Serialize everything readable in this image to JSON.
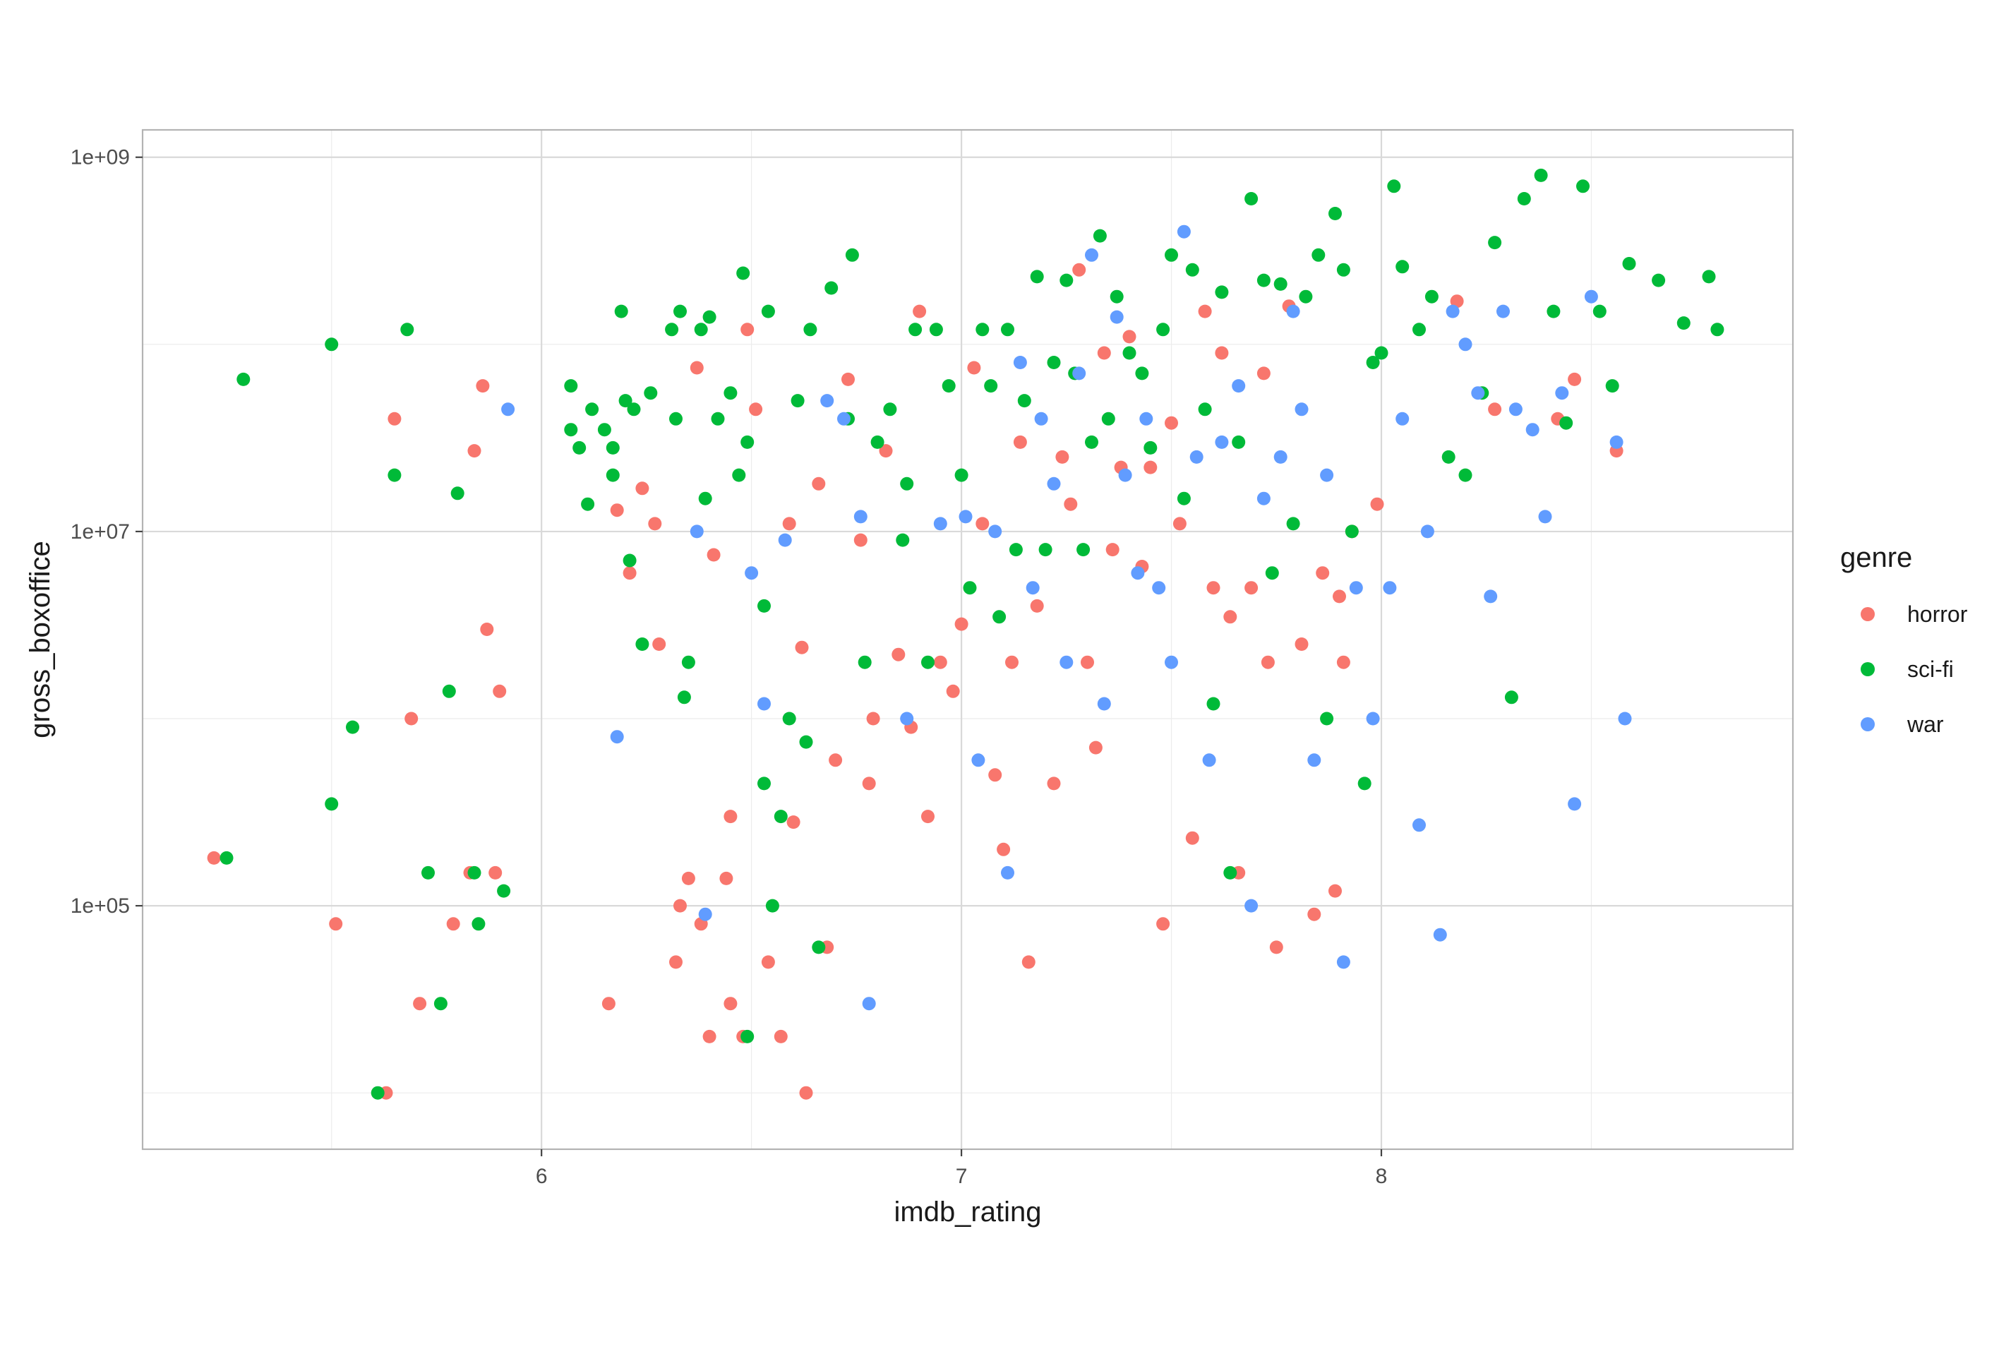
{
  "chart_data": {
    "type": "scatter",
    "title": "",
    "xlabel": "imdb_rating",
    "ylabel": "gross_boxoffice",
    "x_scale": "linear",
    "y_scale": "log10",
    "xlim": [
      5.05,
      8.98
    ],
    "ylim": [
      5000,
      1400000000
    ],
    "x_ticks": [
      6,
      7,
      8
    ],
    "x_tick_labels": [
      "6",
      "7",
      "8"
    ],
    "y_ticks": [
      100000,
      10000000,
      1000000000
    ],
    "y_tick_labels": [
      "1e+05",
      "1e+07",
      "1e+09"
    ],
    "y_minor_ticks": [
      10000,
      1000000,
      100000000
    ],
    "grid": true,
    "legend": {
      "title": "genre",
      "position": "right"
    },
    "series": [
      {
        "name": "horror",
        "color": "#F8766D",
        "points": [
          [
            5.22,
            180000
          ],
          [
            5.51,
            80000
          ],
          [
            5.63,
            10000
          ],
          [
            5.65,
            40000000
          ],
          [
            5.69,
            1000000
          ],
          [
            5.71,
            30000
          ],
          [
            5.79,
            80000
          ],
          [
            5.83,
            150000
          ],
          [
            5.84,
            27000000
          ],
          [
            5.86,
            60000000
          ],
          [
            5.87,
            3000000
          ],
          [
            5.89,
            150000
          ],
          [
            5.9,
            1400000
          ],
          [
            6.16,
            30000
          ],
          [
            6.18,
            13000000
          ],
          [
            6.21,
            6000000
          ],
          [
            6.24,
            17000000
          ],
          [
            6.27,
            11000000
          ],
          [
            6.28,
            2500000
          ],
          [
            6.32,
            50000
          ],
          [
            6.33,
            100000
          ],
          [
            6.35,
            140000
          ],
          [
            6.37,
            75000000
          ],
          [
            6.38,
            80000
          ],
          [
            6.4,
            20000
          ],
          [
            6.41,
            7500000
          ],
          [
            6.44,
            140000
          ],
          [
            6.45,
            30000
          ],
          [
            6.45,
            300000
          ],
          [
            6.48,
            20000
          ],
          [
            6.49,
            120000000
          ],
          [
            6.51,
            45000000
          ],
          [
            6.54,
            50000
          ],
          [
            6.57,
            20000
          ],
          [
            6.59,
            11000000
          ],
          [
            6.6,
            280000
          ],
          [
            6.62,
            2400000
          ],
          [
            6.63,
            10000
          ],
          [
            6.66,
            18000000
          ],
          [
            6.68,
            60000
          ],
          [
            6.7,
            600000
          ],
          [
            6.73,
            65000000
          ],
          [
            6.76,
            9000000
          ],
          [
            6.78,
            450000
          ],
          [
            6.79,
            1000000
          ],
          [
            6.82,
            27000000
          ],
          [
            6.85,
            2200000
          ],
          [
            6.88,
            900000
          ],
          [
            6.9,
            150000000
          ],
          [
            6.92,
            300000
          ],
          [
            6.95,
            2000000
          ],
          [
            6.98,
            1400000
          ],
          [
            7.0,
            3200000
          ],
          [
            7.03,
            75000000
          ],
          [
            7.05,
            11000000
          ],
          [
            7.08,
            500000
          ],
          [
            7.1,
            200000
          ],
          [
            7.12,
            2000000
          ],
          [
            7.14,
            30000000
          ],
          [
            7.16,
            50000
          ],
          [
            7.18,
            4000000
          ],
          [
            7.22,
            450000
          ],
          [
            7.24,
            25000000
          ],
          [
            7.26,
            14000000
          ],
          [
            7.28,
            250000000
          ],
          [
            7.3,
            2000000
          ],
          [
            7.32,
            700000
          ],
          [
            7.34,
            90000000
          ],
          [
            7.36,
            8000000
          ],
          [
            7.38,
            22000000
          ],
          [
            7.4,
            110000000
          ],
          [
            7.43,
            6500000
          ],
          [
            7.45,
            22000000
          ],
          [
            7.48,
            80000
          ],
          [
            7.5,
            38000000
          ],
          [
            7.52,
            11000000
          ],
          [
            7.55,
            230000
          ],
          [
            7.58,
            150000000
          ],
          [
            7.6,
            5000000
          ],
          [
            7.62,
            90000000
          ],
          [
            7.64,
            3500000
          ],
          [
            7.66,
            150000
          ],
          [
            7.69,
            5000000
          ],
          [
            7.72,
            70000000
          ],
          [
            7.73,
            2000000
          ],
          [
            7.75,
            60000
          ],
          [
            7.78,
            160000000
          ],
          [
            7.81,
            2500000
          ],
          [
            7.84,
            90000
          ],
          [
            7.86,
            6000000
          ],
          [
            7.89,
            120000
          ],
          [
            7.9,
            4500000
          ],
          [
            7.91,
            2000000
          ],
          [
            7.93,
            10000000
          ],
          [
            7.99,
            14000000
          ],
          [
            8.18,
            170000000
          ],
          [
            8.27,
            45000000
          ],
          [
            8.42,
            40000000
          ],
          [
            8.46,
            65000000
          ],
          [
            8.56,
            27000000
          ]
        ]
      },
      {
        "name": "sci-fi",
        "color": "#00BA38",
        "points": [
          [
            5.25,
            180000
          ],
          [
            5.29,
            65000000
          ],
          [
            5.5,
            100000000
          ],
          [
            5.5,
            350000
          ],
          [
            5.55,
            900000
          ],
          [
            5.61,
            10000
          ],
          [
            5.65,
            20000000
          ],
          [
            5.68,
            120000000
          ],
          [
            5.73,
            150000
          ],
          [
            5.76,
            30000
          ],
          [
            5.78,
            1400000
          ],
          [
            5.8,
            16000000
          ],
          [
            5.84,
            150000
          ],
          [
            5.85,
            80000
          ],
          [
            5.91,
            120000
          ],
          [
            6.07,
            60000000
          ],
          [
            6.07,
            35000000
          ],
          [
            6.09,
            28000000
          ],
          [
            6.11,
            14000000
          ],
          [
            6.12,
            45000000
          ],
          [
            6.15,
            35000000
          ],
          [
            6.17,
            20000000
          ],
          [
            6.17,
            28000000
          ],
          [
            6.19,
            150000000
          ],
          [
            6.2,
            50000000
          ],
          [
            6.21,
            7000000
          ],
          [
            6.22,
            45000000
          ],
          [
            6.24,
            2500000
          ],
          [
            6.26,
            55000000
          ],
          [
            6.31,
            120000000
          ],
          [
            6.32,
            40000000
          ],
          [
            6.33,
            150000000
          ],
          [
            6.34,
            1300000
          ],
          [
            6.35,
            2000000
          ],
          [
            6.38,
            120000000
          ],
          [
            6.39,
            15000000
          ],
          [
            6.4,
            140000000
          ],
          [
            6.42,
            40000000
          ],
          [
            6.45,
            55000000
          ],
          [
            6.47,
            20000000
          ],
          [
            6.48,
            240000000
          ],
          [
            6.49,
            30000000
          ],
          [
            6.49,
            20000
          ],
          [
            6.53,
            4000000
          ],
          [
            6.53,
            450000
          ],
          [
            6.54,
            150000000
          ],
          [
            6.55,
            100000
          ],
          [
            6.57,
            300000
          ],
          [
            6.59,
            1000000
          ],
          [
            6.61,
            50000000
          ],
          [
            6.63,
            750000
          ],
          [
            6.64,
            120000000
          ],
          [
            6.66,
            60000
          ],
          [
            6.69,
            200000000
          ],
          [
            6.73,
            40000000
          ],
          [
            6.74,
            300000000
          ],
          [
            6.77,
            2000000
          ],
          [
            6.8,
            30000000
          ],
          [
            6.83,
            45000000
          ],
          [
            6.86,
            9000000
          ],
          [
            6.87,
            18000000
          ],
          [
            6.89,
            120000000
          ],
          [
            6.92,
            2000000
          ],
          [
            6.94,
            120000000
          ],
          [
            6.97,
            60000000
          ],
          [
            7.0,
            20000000
          ],
          [
            7.02,
            5000000
          ],
          [
            7.05,
            120000000
          ],
          [
            7.07,
            60000000
          ],
          [
            7.09,
            3500000
          ],
          [
            7.11,
            120000000
          ],
          [
            7.13,
            8000000
          ],
          [
            7.15,
            50000000
          ],
          [
            7.18,
            230000000
          ],
          [
            7.2,
            8000000
          ],
          [
            7.22,
            80000000
          ],
          [
            7.25,
            220000000
          ],
          [
            7.27,
            70000000
          ],
          [
            7.29,
            8000000
          ],
          [
            7.31,
            30000000
          ],
          [
            7.33,
            380000000
          ],
          [
            7.35,
            40000000
          ],
          [
            7.37,
            180000000
          ],
          [
            7.4,
            90000000
          ],
          [
            7.43,
            70000000
          ],
          [
            7.45,
            28000000
          ],
          [
            7.48,
            120000000
          ],
          [
            7.5,
            300000000
          ],
          [
            7.53,
            15000000
          ],
          [
            7.55,
            250000000
          ],
          [
            7.58,
            45000000
          ],
          [
            7.6,
            1200000
          ],
          [
            7.62,
            190000000
          ],
          [
            7.64,
            150000
          ],
          [
            7.66,
            30000000
          ],
          [
            7.69,
            600000000
          ],
          [
            7.72,
            220000000
          ],
          [
            7.74,
            6000000
          ],
          [
            7.76,
            210000000
          ],
          [
            7.79,
            11000000
          ],
          [
            7.82,
            180000000
          ],
          [
            7.85,
            300000000
          ],
          [
            7.87,
            1000000
          ],
          [
            7.89,
            500000000
          ],
          [
            7.91,
            250000000
          ],
          [
            7.93,
            10000000
          ],
          [
            7.96,
            450000
          ],
          [
            7.98,
            80000000
          ],
          [
            8.0,
            90000000
          ],
          [
            8.03,
            700000000
          ],
          [
            8.05,
            260000000
          ],
          [
            8.09,
            120000000
          ],
          [
            8.12,
            180000000
          ],
          [
            8.16,
            25000000
          ],
          [
            8.2,
            20000000
          ],
          [
            8.24,
            55000000
          ],
          [
            8.27,
            350000000
          ],
          [
            8.31,
            1300000
          ],
          [
            8.34,
            600000000
          ],
          [
            8.38,
            800000000
          ],
          [
            8.41,
            150000000
          ],
          [
            8.44,
            38000000
          ],
          [
            8.48,
            700000000
          ],
          [
            8.52,
            150000000
          ],
          [
            8.55,
            60000000
          ],
          [
            8.59,
            270000000
          ],
          [
            8.66,
            220000000
          ],
          [
            8.72,
            130000000
          ],
          [
            8.78,
            230000000
          ],
          [
            8.8,
            120000000
          ]
        ]
      },
      {
        "name": "war",
        "color": "#619CFF",
        "points": [
          [
            5.92,
            45000000
          ],
          [
            6.18,
            800000
          ],
          [
            6.37,
            10000000
          ],
          [
            6.39,
            90000
          ],
          [
            6.5,
            6000000
          ],
          [
            6.53,
            1200000
          ],
          [
            6.58,
            9000000
          ],
          [
            6.68,
            50000000
          ],
          [
            6.72,
            40000000
          ],
          [
            6.76,
            12000000
          ],
          [
            6.78,
            30000
          ],
          [
            6.87,
            1000000
          ],
          [
            6.95,
            11000000
          ],
          [
            7.01,
            12000000
          ],
          [
            7.04,
            600000
          ],
          [
            7.08,
            10000000
          ],
          [
            7.11,
            150000
          ],
          [
            7.14,
            80000000
          ],
          [
            7.17,
            5000000
          ],
          [
            7.19,
            40000000
          ],
          [
            7.22,
            18000000
          ],
          [
            7.25,
            2000000
          ],
          [
            7.28,
            70000000
          ],
          [
            7.31,
            300000000
          ],
          [
            7.34,
            1200000
          ],
          [
            7.37,
            140000000
          ],
          [
            7.39,
            20000000
          ],
          [
            7.42,
            6000000
          ],
          [
            7.44,
            40000000
          ],
          [
            7.47,
            5000000
          ],
          [
            7.5,
            2000000
          ],
          [
            7.53,
            400000000
          ],
          [
            7.56,
            25000000
          ],
          [
            7.59,
            600000
          ],
          [
            7.62,
            30000000
          ],
          [
            7.66,
            60000000
          ],
          [
            7.69,
            100000
          ],
          [
            7.72,
            15000000
          ],
          [
            7.76,
            25000000
          ],
          [
            7.79,
            150000000
          ],
          [
            7.81,
            45000000
          ],
          [
            7.84,
            600000
          ],
          [
            7.87,
            20000000
          ],
          [
            7.91,
            50000
          ],
          [
            7.94,
            5000000
          ],
          [
            7.98,
            1000000
          ],
          [
            8.02,
            5000000
          ],
          [
            8.05,
            40000000
          ],
          [
            8.09,
            270000
          ],
          [
            8.11,
            10000000
          ],
          [
            8.14,
            70000
          ],
          [
            8.17,
            150000000
          ],
          [
            8.2,
            100000000
          ],
          [
            8.23,
            55000000
          ],
          [
            8.26,
            4500000
          ],
          [
            8.29,
            150000000
          ],
          [
            8.32,
            45000000
          ],
          [
            8.36,
            35000000
          ],
          [
            8.39,
            12000000
          ],
          [
            8.43,
            55000000
          ],
          [
            8.46,
            350000
          ],
          [
            8.5,
            180000000
          ],
          [
            8.56,
            30000000
          ],
          [
            8.58,
            1000000
          ]
        ]
      }
    ]
  }
}
